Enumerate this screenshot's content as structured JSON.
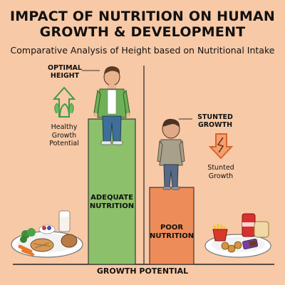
{
  "title_line1": "IMPACT OF NUTRITION ON HUMAN",
  "title_line2": "GROWTH & DEVELOPMENT",
  "subtitle": "Comparative Analysis of Height based on Nutritional Intake",
  "left": {
    "marker_line1": "OPTIMAL",
    "marker_line2": "HEIGHT",
    "note_line1": "Healthy",
    "note_line2": "Growth",
    "note_line3": "Potential",
    "bar_line1": "ADEQUATE",
    "bar_line2": "NUTRITION",
    "bar_color": "#8cc06a",
    "arrow_color": "#3f9a4a"
  },
  "right": {
    "marker_line1": "STUNTED",
    "marker_line2": "GROWTH",
    "note_line1": "Stunted",
    "note_line2": "Growth",
    "bar_line1": "POOR",
    "bar_line2": "NUTRITION",
    "bar_color": "#ee8c59",
    "arrow_color": "#e2733c"
  },
  "xlabel": "GROWTH POTENTIAL",
  "chart_data": {
    "type": "bar",
    "categories": [
      "ADEQUATE NUTRITION",
      "POOR NUTRITION"
    ],
    "values": [
      0.68,
      0.36
    ],
    "xlabel": "GROWTH POTENTIAL"
  }
}
